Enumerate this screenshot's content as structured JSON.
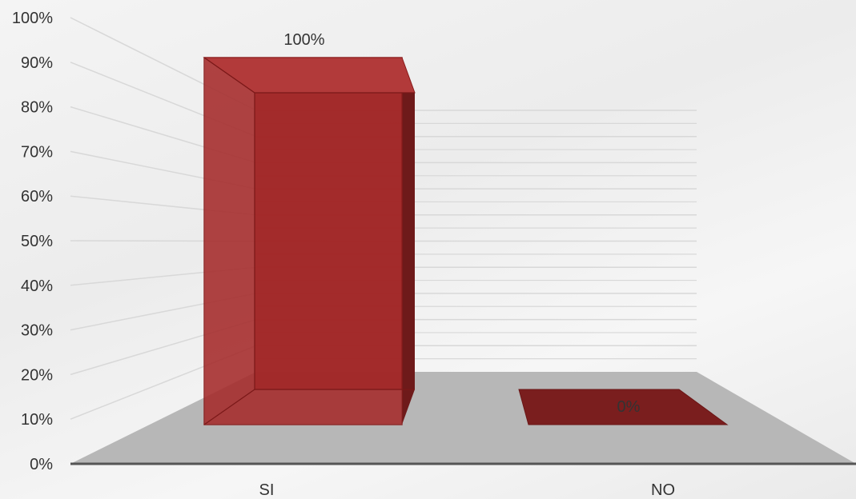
{
  "chart_data": {
    "type": "bar",
    "categories": [
      "SI",
      "NO"
    ],
    "values": [
      100,
      0
    ],
    "data_labels": [
      "100%",
      "0%"
    ],
    "y_ticks": [
      "0%",
      "10%",
      "20%",
      "30%",
      "40%",
      "50%",
      "60%",
      "70%",
      "80%",
      "90%",
      "100%"
    ],
    "ylim": [
      0,
      100
    ],
    "title": "",
    "xlabel": "",
    "ylabel": "",
    "grid": true,
    "legend": "none",
    "colors": {
      "bar": "#a52a2a",
      "floor": "#b7b7b7",
      "axis": "#555555",
      "grid": "#d8d8d8"
    }
  }
}
